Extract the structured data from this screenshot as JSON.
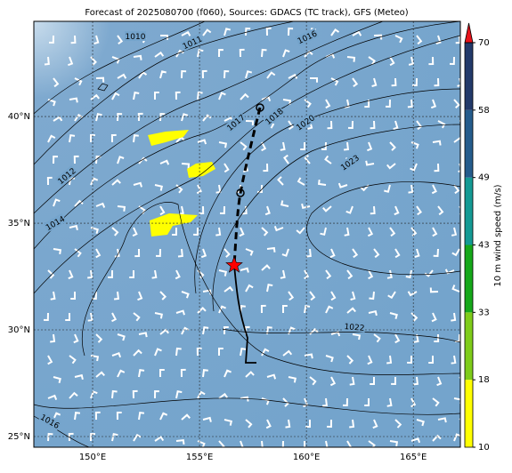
{
  "title": "Forecast of 2025080700 (f060), Sources: GDACS (TC track), GFS (Meteo)",
  "map": {
    "xlim": [
      147.25,
      167.2
    ],
    "ylim": [
      24.5,
      44.46
    ],
    "xticks": [
      {
        "value": 150,
        "label": "150°E"
      },
      {
        "value": 155,
        "label": "155°E"
      },
      {
        "value": 160,
        "label": "160°E"
      },
      {
        "value": 165,
        "label": "165°E"
      }
    ],
    "yticks": [
      {
        "value": 25,
        "label": "25°N"
      },
      {
        "value": 30,
        "label": "30°N"
      },
      {
        "value": 35,
        "label": "35°N"
      },
      {
        "value": 40,
        "label": "40°N"
      }
    ],
    "contour_labels": [
      "1010",
      "1011",
      "1016",
      "1017",
      "1018",
      "1020",
      "1023",
      "1022",
      "1012",
      "1014",
      "1016"
    ]
  },
  "colorbar": {
    "label": "10 m wind speed (m/s)",
    "ticks": [
      10,
      18,
      33,
      43,
      49,
      58,
      70
    ],
    "colors": [
      "#ffff00",
      "#7fcc1a",
      "#16a81a",
      "#149a94",
      "#255c8c",
      "#233a6a"
    ],
    "extend_color": "#e8131b"
  }
}
